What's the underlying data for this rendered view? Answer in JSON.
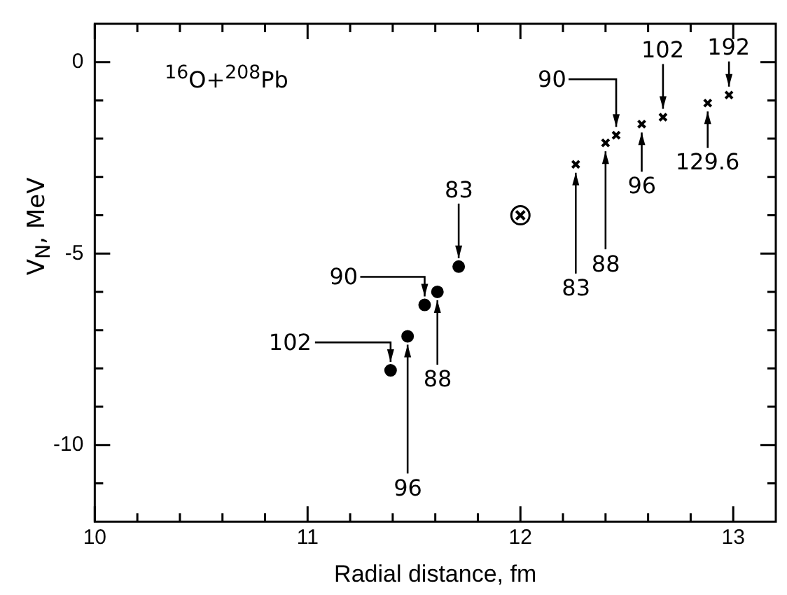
{
  "chart_data": {
    "type": "scatter",
    "xlabel": "Radial distance, fm",
    "ylabel": "V$_{N}$, MeV",
    "xlim": [
      10,
      13.2
    ],
    "ylim": [
      -12,
      1
    ],
    "xticks": [
      10,
      {
        "value": 10.2,
        "label": null
      },
      {
        "value": 10.4,
        "label": null
      },
      {
        "value": 10.6,
        "label": null
      },
      {
        "value": 10.8,
        "label": null
      },
      11,
      {
        "value": 11.2,
        "label": null
      },
      {
        "value": 11.4,
        "label": null
      },
      {
        "value": 11.6,
        "label": null
      },
      {
        "value": 11.8,
        "label": null
      },
      12,
      {
        "value": 12.2,
        "label": null
      },
      {
        "value": 12.4,
        "label": null
      },
      {
        "value": 12.6,
        "label": null
      },
      {
        "value": 12.8,
        "label": null
      },
      13
    ],
    "yticks": [
      0,
      {
        "value": -1,
        "label": null
      },
      {
        "value": -2,
        "label": null
      },
      {
        "value": -3,
        "label": null
      },
      {
        "value": -4,
        "label": null
      },
      -5,
      {
        "value": -6,
        "label": null
      },
      {
        "value": -7,
        "label": null
      },
      {
        "value": -8,
        "label": null
      },
      {
        "value": -9,
        "label": null
      },
      -10,
      {
        "value": -11,
        "label": null
      }
    ],
    "grid": false,
    "legend": false,
    "series": [
      {
        "color": "#000000",
        "marker": "circle",
        "x": [
          11.39,
          11.47,
          11.55,
          11.61,
          11.71
        ],
        "values": [
          -8.05,
          -7.16,
          -6.34,
          -6.0,
          -5.34
        ]
      },
      {
        "color": "#000000",
        "marker": "cross",
        "x": [
          12.26,
          12.4,
          12.45,
          12.57,
          12.67,
          12.88,
          12.98
        ],
        "values": [
          -2.67,
          -2.11,
          -1.91,
          -1.62,
          -1.44,
          -1.07,
          -0.86
        ]
      },
      {
        "color": "#000000",
        "marker": "circle",
        "x": [
          12.0
        ],
        "values": [
          -4.0
        ]
      }
    ],
    "annotations": [
      {
        "text": "102",
        "x": 11.39,
        "y": -8.05
      },
      {
        "text": "96",
        "x": 11.47,
        "y": -7.16
      },
      {
        "text": "90",
        "x": 11.55,
        "y": -6.34
      },
      {
        "text": "88",
        "x": 11.61,
        "y": -6.0
      },
      {
        "text": "83",
        "x": 11.71,
        "y": -5.34
      },
      {
        "text": "83",
        "x": 12.26,
        "y": -2.67
      },
      {
        "text": "88",
        "x": 12.4,
        "y": -2.11
      },
      {
        "text": "90",
        "x": 12.45,
        "y": -1.91
      },
      {
        "text": "96",
        "x": 12.57,
        "y": -1.62
      },
      {
        "text": "102",
        "x": 12.67,
        "y": -1.44
      },
      {
        "text": "129.6",
        "x": 12.88,
        "y": -1.07
      },
      {
        "text": "192",
        "x": 12.98,
        "y": -0.86
      },
      "$^{16}$O+$^{208}$Pb"
    ]
  }
}
